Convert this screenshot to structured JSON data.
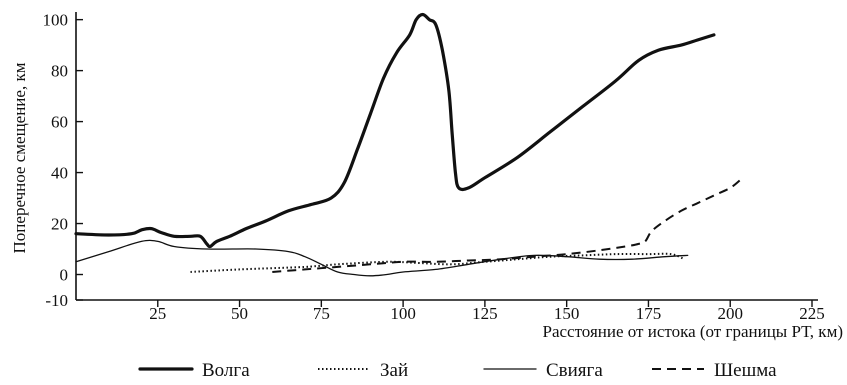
{
  "chart_data": {
    "type": "line",
    "title": "",
    "xlabel": "Расстояние от истока (от границы РТ, км)",
    "ylabel": "Поперечное смещение, км",
    "xlim": [
      0,
      225
    ],
    "ylim": [
      -10,
      103
    ],
    "x_ticks": [
      25,
      50,
      75,
      100,
      125,
      150,
      175,
      200,
      225
    ],
    "y_ticks": [
      -10,
      0,
      20,
      40,
      60,
      80,
      100
    ],
    "grid": false,
    "legend_position": "bottom",
    "series": [
      {
        "name": "Волга",
        "style": "thick-solid",
        "points": [
          [
            0,
            16
          ],
          [
            10,
            15.5
          ],
          [
            17,
            16
          ],
          [
            20,
            17.5
          ],
          [
            23,
            18
          ],
          [
            26,
            16.5
          ],
          [
            30,
            15
          ],
          [
            35,
            15
          ],
          [
            38,
            15
          ],
          [
            40,
            12
          ],
          [
            41,
            11
          ],
          [
            43,
            13
          ],
          [
            47,
            15
          ],
          [
            52,
            18
          ],
          [
            58,
            21
          ],
          [
            65,
            25
          ],
          [
            72,
            27.5
          ],
          [
            78,
            30
          ],
          [
            82,
            36
          ],
          [
            86,
            49
          ],
          [
            90,
            63
          ],
          [
            94,
            77
          ],
          [
            98,
            87
          ],
          [
            102,
            94
          ],
          [
            104,
            100
          ],
          [
            106,
            102
          ],
          [
            108,
            100
          ],
          [
            110,
            98
          ],
          [
            112,
            88
          ],
          [
            114,
            72
          ],
          [
            115,
            55
          ],
          [
            116,
            40
          ],
          [
            117,
            34
          ],
          [
            120,
            34
          ],
          [
            125,
            38
          ],
          [
            135,
            46
          ],
          [
            145,
            56
          ],
          [
            155,
            66
          ],
          [
            165,
            76
          ],
          [
            172,
            84
          ],
          [
            178,
            88
          ],
          [
            185,
            90
          ],
          [
            190,
            92
          ],
          [
            195,
            94
          ]
        ]
      },
      {
        "name": "Зай",
        "style": "dotted",
        "points": [
          [
            35,
            1
          ],
          [
            50,
            2
          ],
          [
            70,
            3
          ],
          [
            80,
            4
          ],
          [
            95,
            5
          ],
          [
            105,
            4.5
          ],
          [
            115,
            4
          ],
          [
            125,
            5
          ],
          [
            135,
            6
          ],
          [
            145,
            7
          ],
          [
            155,
            7.5
          ],
          [
            165,
            8
          ],
          [
            175,
            8
          ],
          [
            182,
            8
          ],
          [
            186,
            6
          ]
        ]
      },
      {
        "name": "Свияга",
        "style": "thin-solid",
        "points": [
          [
            0,
            5
          ],
          [
            10,
            9
          ],
          [
            20,
            13
          ],
          [
            25,
            13
          ],
          [
            30,
            11
          ],
          [
            40,
            10
          ],
          [
            55,
            10
          ],
          [
            65,
            9
          ],
          [
            70,
            7
          ],
          [
            75,
            4
          ],
          [
            80,
            1
          ],
          [
            85,
            0
          ],
          [
            90,
            -0.5
          ],
          [
            95,
            0
          ],
          [
            100,
            1
          ],
          [
            110,
            2
          ],
          [
            120,
            4
          ],
          [
            130,
            6
          ],
          [
            140,
            7.5
          ],
          [
            150,
            7
          ],
          [
            160,
            6
          ],
          [
            170,
            6
          ],
          [
            180,
            7
          ],
          [
            187,
            7.5
          ]
        ]
      },
      {
        "name": "Шешма",
        "style": "dashed",
        "points": [
          [
            60,
            1
          ],
          [
            70,
            2
          ],
          [
            80,
            3
          ],
          [
            90,
            4
          ],
          [
            100,
            5
          ],
          [
            110,
            5
          ],
          [
            120,
            5.5
          ],
          [
            130,
            6
          ],
          [
            140,
            7
          ],
          [
            150,
            8
          ],
          [
            160,
            9.5
          ],
          [
            168,
            11
          ],
          [
            172,
            12
          ],
          [
            174,
            13
          ],
          [
            176,
            17
          ],
          [
            180,
            21
          ],
          [
            185,
            25
          ],
          [
            190,
            28
          ],
          [
            195,
            31
          ],
          [
            200,
            34
          ],
          [
            203,
            37
          ]
        ]
      }
    ]
  }
}
